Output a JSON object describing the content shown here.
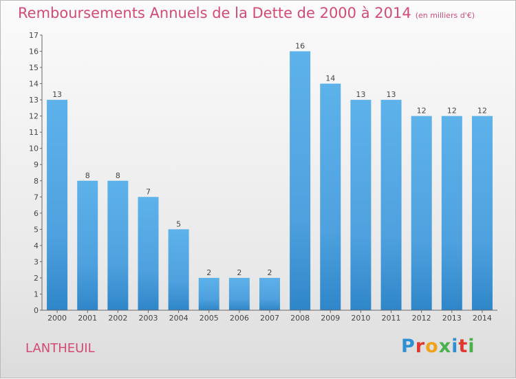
{
  "chart_data": {
    "type": "bar",
    "title": "Remboursements Annuels de la Dette de 2000 à 2014",
    "unit": "(en milliers d'€)",
    "categories": [
      "2000",
      "2001",
      "2002",
      "2003",
      "2004",
      "2005",
      "2006",
      "2007",
      "2008",
      "2009",
      "2010",
      "2011",
      "2012",
      "2013",
      "2014"
    ],
    "values": [
      13,
      8,
      8,
      7,
      5,
      2,
      2,
      2,
      16,
      14,
      13,
      13,
      12,
      12,
      12
    ],
    "ylim": [
      0,
      17
    ],
    "yticks": [
      0,
      1,
      2,
      3,
      4,
      5,
      6,
      7,
      8,
      9,
      10,
      11,
      12,
      13,
      14,
      15,
      16,
      17
    ],
    "xlabel": "",
    "ylabel": "",
    "bar_color": "#57abe6",
    "bar_color_dark": "#2f86c8"
  },
  "commune": "LANTHEUIL",
  "logo": {
    "letters": [
      "P",
      "r",
      "o",
      "x",
      "i",
      "t",
      "i"
    ]
  }
}
